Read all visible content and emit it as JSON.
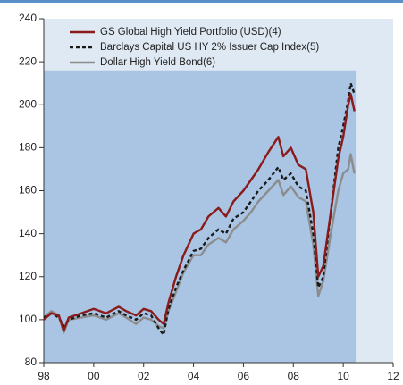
{
  "chart_data": {
    "type": "line",
    "x": [
      1998.0,
      1998.3,
      1998.6,
      1998.8,
      1999.0,
      1999.5,
      2000.0,
      2000.5,
      2001.0,
      2001.3,
      2001.7,
      2002.0,
      2002.3,
      2002.6,
      2002.8,
      2003.0,
      2003.3,
      2003.6,
      2004.0,
      2004.3,
      2004.6,
      2005.0,
      2005.3,
      2005.6,
      2006.0,
      2006.3,
      2006.6,
      2007.0,
      2007.4,
      2007.6,
      2007.9,
      2008.2,
      2008.5,
      2008.8,
      2009.0,
      2009.2,
      2009.5,
      2009.8,
      2010.0,
      2010.2,
      2010.3,
      2010.45
    ],
    "series": [
      {
        "name": "GS Global High Yield Portfolio (USD)(4)",
        "color": "#8b1a1a",
        "style": "solid",
        "values": [
          100,
          103,
          102,
          95,
          101,
          103,
          105,
          103,
          106,
          104,
          102,
          105,
          104,
          100,
          98,
          108,
          120,
          130,
          140,
          142,
          148,
          152,
          148,
          155,
          160,
          165,
          170,
          178,
          185,
          176,
          180,
          172,
          170,
          150,
          120,
          125,
          150,
          175,
          185,
          200,
          205,
          197
        ]
      },
      {
        "name": "Barclays Capital US HY 2% Issuer Cap Index(5)",
        "color": "#1a1a1a",
        "style": "dashed",
        "values": [
          101,
          103,
          101,
          97,
          100,
          102,
          103,
          101,
          104,
          102,
          100,
          103,
          102,
          96,
          93,
          105,
          115,
          123,
          132,
          133,
          138,
          142,
          140,
          147,
          150,
          155,
          160,
          165,
          171,
          165,
          168,
          162,
          160,
          140,
          115,
          120,
          150,
          180,
          190,
          202,
          210,
          205
        ]
      },
      {
        "name": "Dollar High Yield Bond(6)",
        "color": "#8c8c8c",
        "style": "solid",
        "values": [
          101,
          104,
          102,
          94,
          100,
          101,
          102,
          100,
          103,
          101,
          98,
          101,
          100,
          97,
          96,
          104,
          113,
          122,
          130,
          130,
          135,
          138,
          136,
          142,
          146,
          150,
          155,
          160,
          165,
          158,
          162,
          157,
          155,
          135,
          111,
          118,
          140,
          160,
          168,
          170,
          177,
          168
        ]
      }
    ],
    "xlim": [
      1998,
      2012
    ],
    "xticks": [
      {
        "value": 1998,
        "label": "98"
      },
      {
        "value": 2000,
        "label": "00"
      },
      {
        "value": 2002,
        "label": "02"
      },
      {
        "value": 2004,
        "label": "04"
      },
      {
        "value": 2006,
        "label": "06"
      },
      {
        "value": 2008,
        "label": "08"
      },
      {
        "value": 2010,
        "label": "10"
      },
      {
        "value": 2012,
        "label": "12"
      }
    ],
    "ylim": [
      80,
      240
    ],
    "yticks": [
      80,
      100,
      120,
      140,
      160,
      180,
      200,
      220,
      240
    ],
    "shaded_region": {
      "xlim": [
        1998,
        2010.5
      ],
      "ylim": [
        80,
        216
      ],
      "color": "#a9c5e3"
    },
    "legend": "upper-left"
  }
}
